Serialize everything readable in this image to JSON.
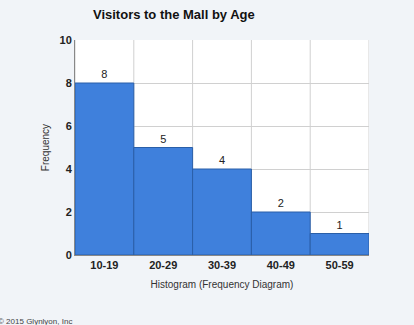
{
  "chart_data": {
    "type": "bar",
    "title": "Visitors to the Mall by Age",
    "x_label": "Histogram (Frequency Diagram)",
    "y_label": "Frequency",
    "categories": [
      "10-19",
      "20-29",
      "30-39",
      "40-49",
      "50-59"
    ],
    "values": [
      8,
      5,
      4,
      2,
      1
    ],
    "color": "#3f80dc",
    "ylim": [
      0,
      10
    ],
    "yticks": [
      0,
      2,
      4,
      6,
      8,
      10
    ],
    "grid": true,
    "data_labels": true,
    "annotations": [
      "© 2015 Glynlyon, Inc"
    ]
  }
}
